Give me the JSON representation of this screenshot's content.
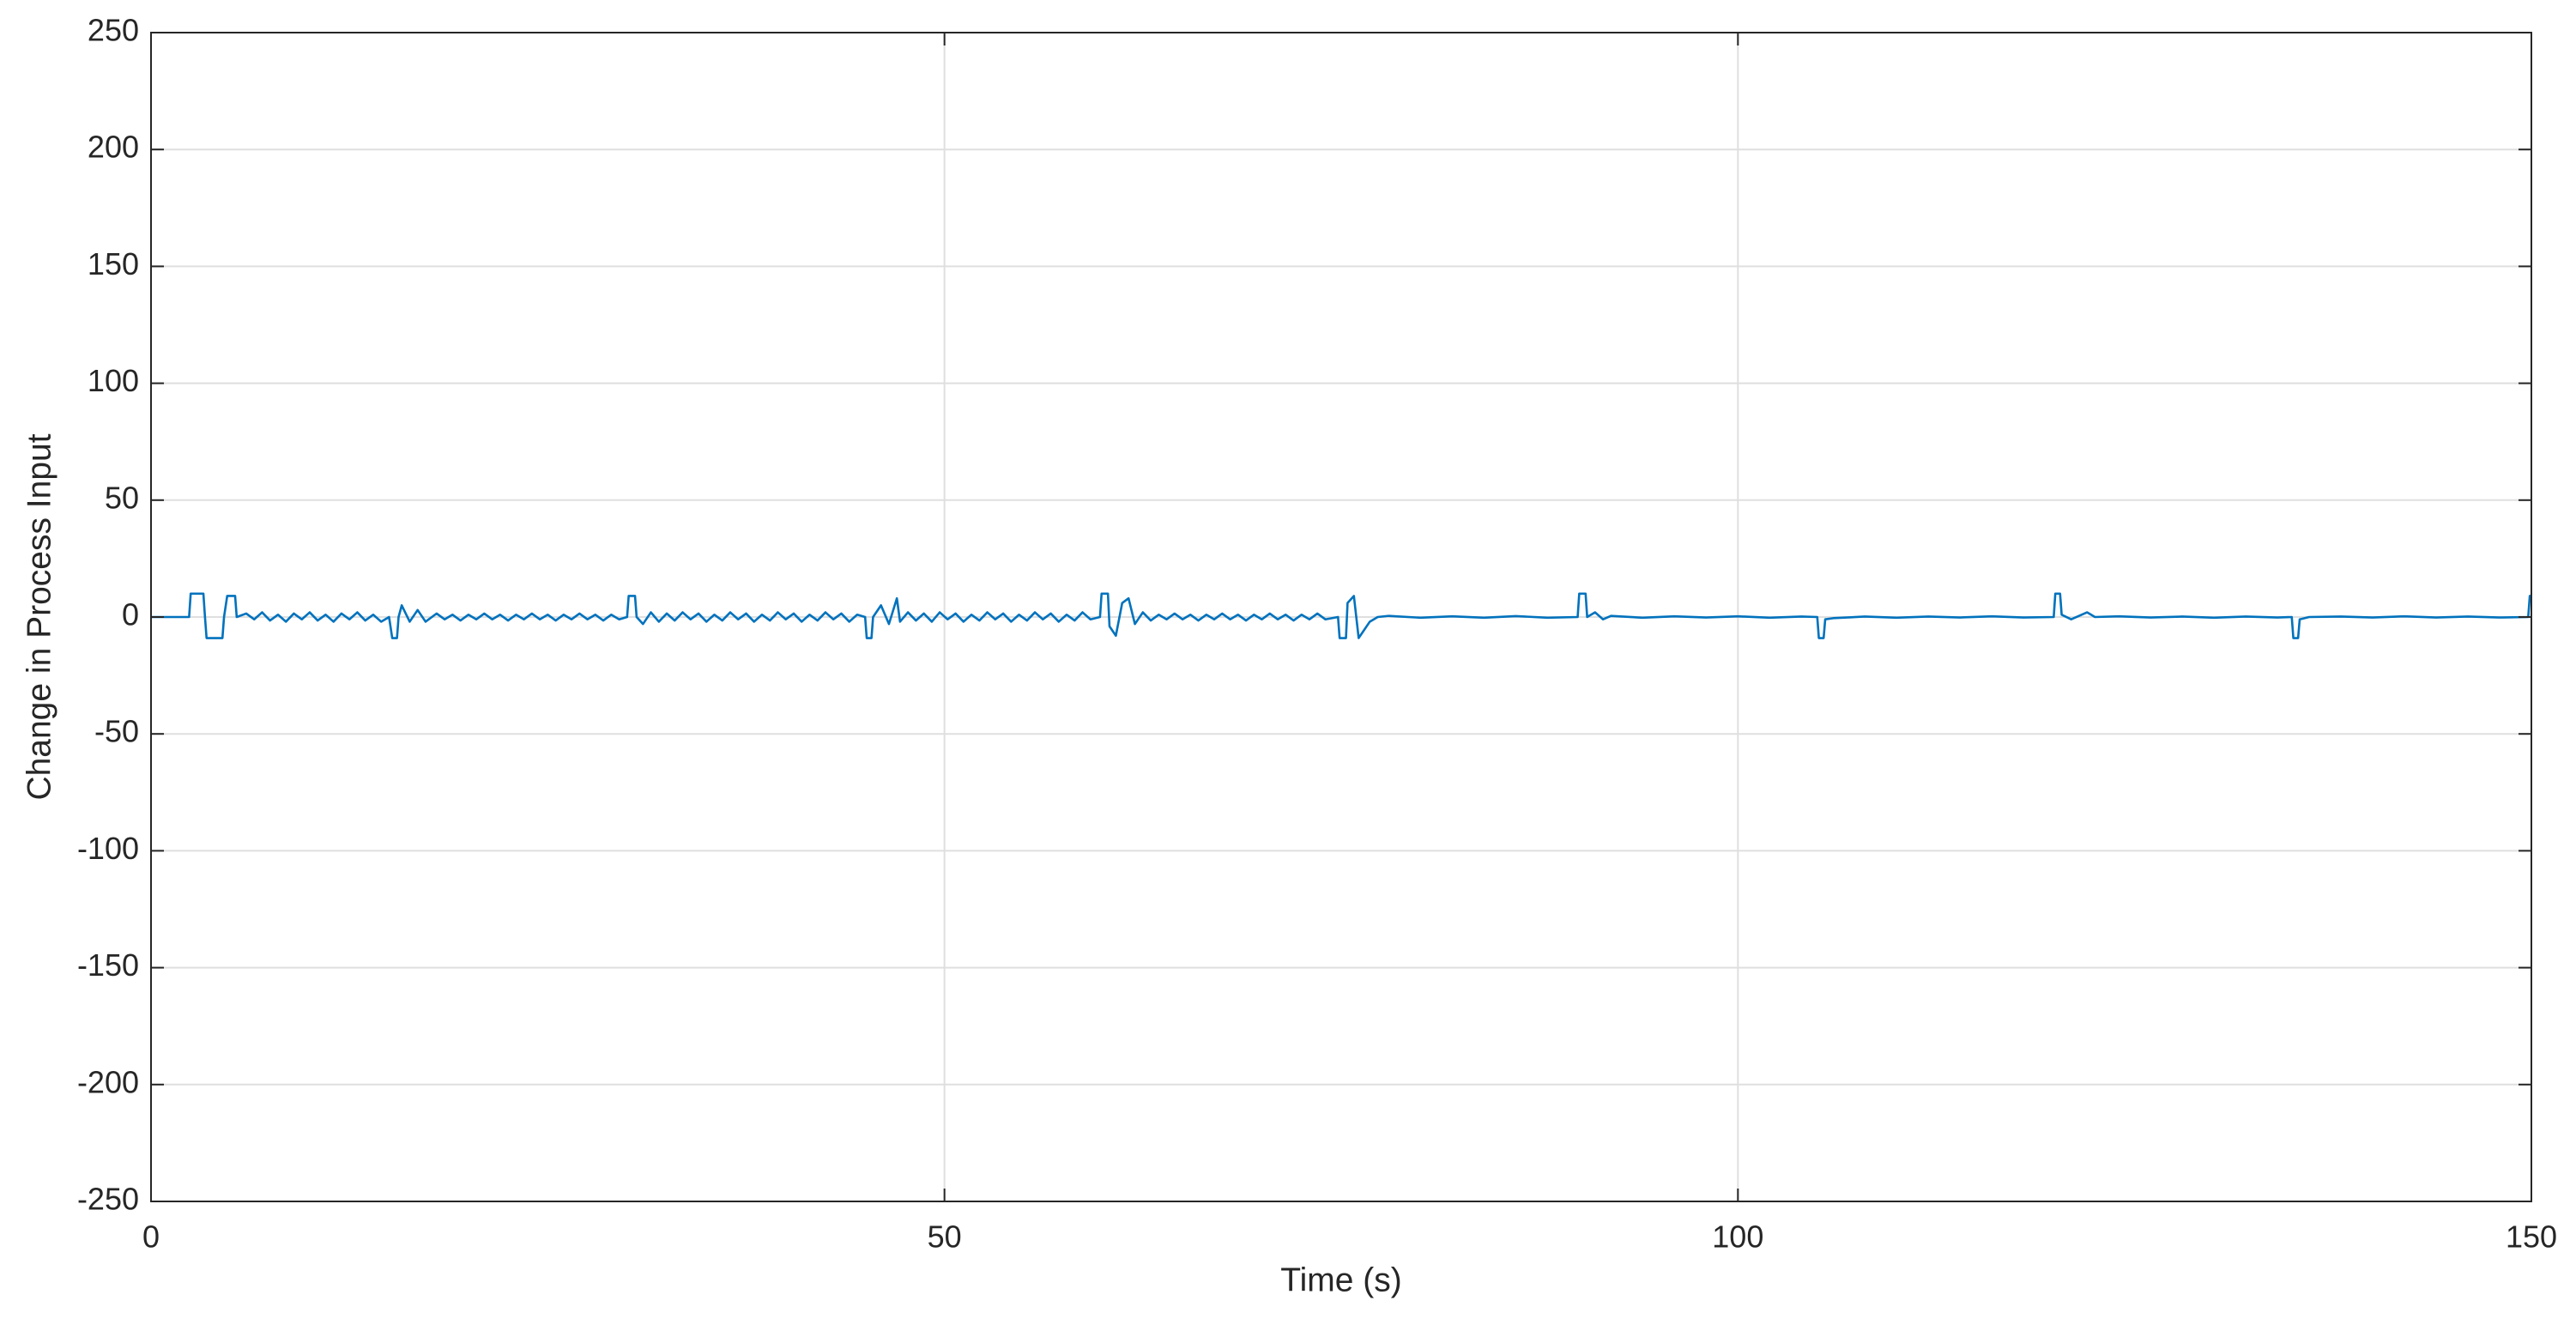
{
  "chart_data": {
    "type": "line",
    "xlabel": "Time (s)",
    "ylabel": "Change in Process Input",
    "color": "#0072BD",
    "grid": true,
    "xlim": [
      0,
      150
    ],
    "xticks": [
      0,
      50,
      100,
      150
    ],
    "ylim": [
      -250,
      250
    ],
    "yticks": [
      -250,
      -200,
      -150,
      -100,
      -50,
      0,
      50,
      100,
      150,
      200,
      250
    ],
    "x": [
      0,
      2.4,
      2.5,
      3.3,
      3.4,
      3.5,
      4.5,
      4.6,
      4.8,
      5.3,
      5.4,
      6,
      6.5,
      7,
      7.5,
      8,
      8.5,
      9,
      9.5,
      10,
      10.5,
      11,
      11.5,
      12,
      12.5,
      13,
      13.5,
      14,
      14.5,
      15,
      15.2,
      15.5,
      15.6,
      15.8,
      16.3,
      16.8,
      17.3,
      18,
      18.5,
      19,
      19.5,
      20,
      20.5,
      21,
      21.5,
      22,
      22.5,
      23,
      23.5,
      24,
      24.5,
      25,
      25.5,
      26,
      26.5,
      27,
      27.5,
      28,
      28.5,
      29,
      29.5,
      30,
      30.1,
      30.5,
      30.6,
      31,
      31.5,
      32,
      32.5,
      33,
      33.5,
      34,
      34.5,
      35,
      35.5,
      36,
      36.5,
      37,
      37.5,
      38,
      38.5,
      39,
      39.5,
      40,
      40.5,
      41,
      41.5,
      42,
      42.5,
      43,
      43.5,
      44,
      44.5,
      45,
      45.1,
      45.4,
      45.5,
      46,
      46.5,
      47,
      47.2,
      47.7,
      48.2,
      48.7,
      49.2,
      49.7,
      50.2,
      50.7,
      51.2,
      51.7,
      52.2,
      52.7,
      53.2,
      53.7,
      54.2,
      54.7,
      55.2,
      55.7,
      56.2,
      56.7,
      57.2,
      57.7,
      58.2,
      58.7,
      59.2,
      59.8,
      59.9,
      60.3,
      60.4,
      60.8,
      61.2,
      61.6,
      62,
      62.5,
      63,
      63.5,
      64,
      64.5,
      65,
      65.5,
      66,
      66.5,
      67,
      67.5,
      68,
      68.5,
      69,
      69.5,
      70,
      70.5,
      71,
      71.5,
      72,
      72.5,
      73,
      73.5,
      74,
      74.8,
      74.9,
      75.3,
      75.4,
      75.8,
      76.1,
      76.4,
      76.8,
      77.3,
      78,
      80,
      82,
      84,
      86,
      88,
      89.9,
      90,
      90.4,
      90.5,
      91,
      91.5,
      92,
      94,
      96,
      98,
      100,
      102,
      104,
      105,
      105.1,
      105.4,
      105.5,
      106,
      108,
      110,
      112,
      114,
      116,
      118,
      119.9,
      120,
      120.3,
      120.4,
      121,
      122,
      122.5,
      124,
      126,
      128,
      130,
      132,
      134,
      134.9,
      135,
      135.3,
      135.4,
      136,
      138,
      140,
      142,
      144,
      146,
      148,
      149.8,
      149.9,
      150
    ],
    "values": [
      0,
      0,
      10,
      10,
      0,
      -9,
      -9,
      0,
      9,
      9,
      0,
      1.5,
      -1,
      2,
      -1.5,
      1,
      -2,
      1.5,
      -1,
      2,
      -1.5,
      1,
      -2,
      1.5,
      -1,
      2,
      -1.5,
      1,
      -2,
      0,
      -9,
      -9,
      0,
      5,
      -2,
      3,
      -2,
      1.5,
      -1,
      1,
      -1.5,
      1,
      -1,
      1.5,
      -1,
      1,
      -1.5,
      1,
      -1,
      1.5,
      -1,
      1,
      -1.5,
      1,
      -1,
      1.5,
      -1,
      1,
      -1.5,
      1,
      -1,
      0,
      9,
      9,
      0,
      -3,
      2,
      -2,
      1.5,
      -1.5,
      2,
      -1,
      1.5,
      -2,
      1,
      -1.5,
      2,
      -1,
      1.5,
      -2,
      1,
      -1.5,
      2,
      -1,
      1.5,
      -2,
      1,
      -1.5,
      2,
      -1,
      1.5,
      -2,
      1,
      0,
      -9,
      -9,
      0,
      5,
      -3,
      8,
      -2,
      2,
      -1.5,
      1.5,
      -2,
      2,
      -1,
      1.5,
      -2,
      1,
      -1.5,
      2,
      -1,
      1.5,
      -2,
      1,
      -1.5,
      2,
      -1,
      1.5,
      -2,
      1,
      -1.5,
      2,
      -1,
      0,
      10,
      10,
      -4,
      -8,
      6,
      8,
      -3,
      2,
      -1.5,
      1,
      -1,
      1.5,
      -1,
      1,
      -1.5,
      1,
      -1,
      1.5,
      -1,
      1,
      -1.5,
      1,
      -1,
      1.5,
      -1,
      1,
      -1.5,
      1,
      -1,
      1.5,
      -1,
      0,
      -9,
      -9,
      6,
      9,
      -9,
      -6,
      -2,
      0,
      0.5,
      -0.3,
      0.3,
      -0.3,
      0.4,
      -0.3,
      0,
      10,
      10,
      0,
      2,
      -1,
      0.5,
      -0.3,
      0.3,
      -0.2,
      0.3,
      -0.3,
      0.2,
      0,
      -9,
      -9,
      -1,
      -0.5,
      0.2,
      -0.3,
      0.2,
      -0.2,
      0.3,
      -0.2,
      0,
      10,
      10,
      1,
      -1,
      2,
      0,
      0.3,
      -0.2,
      0.2,
      -0.3,
      0.2,
      -0.2,
      0,
      -9,
      -9,
      -1,
      0,
      0.2,
      -0.2,
      0.3,
      -0.2,
      0.2,
      -0.2,
      0,
      9,
      9
    ]
  }
}
